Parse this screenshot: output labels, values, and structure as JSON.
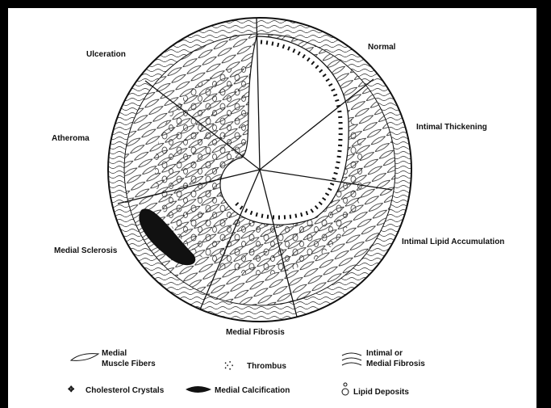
{
  "diagram": {
    "segments": [
      {
        "label": "Normal"
      },
      {
        "label": "Intimal Thickening"
      },
      {
        "label": "Intimal Lipid Accumulation"
      },
      {
        "label": "Medial Fibrosis"
      },
      {
        "label": "Medial Sclerosis"
      },
      {
        "label": "Atheroma"
      },
      {
        "label": "Ulceration"
      }
    ],
    "legend": [
      {
        "label": "Medial\nMuscle Fibers"
      },
      {
        "label": "Thrombus"
      },
      {
        "label": "Intimal or\nMedial Fibrosis"
      },
      {
        "label": "Cholesterol Crystals"
      },
      {
        "label": "Medial Calcification"
      },
      {
        "label": "Lipid Deposits"
      }
    ]
  }
}
